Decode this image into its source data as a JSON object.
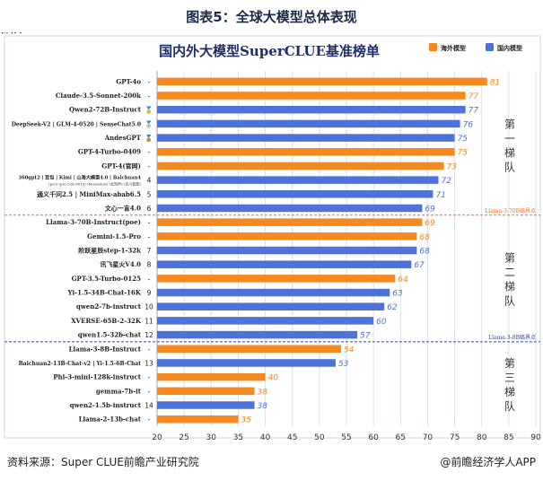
{
  "figure": {
    "title": "图表5：全球大模型总体表现",
    "source": "资料来源：Super CLUE前瞻产业研究院",
    "brand": "@前瞻经济学人APP"
  },
  "colors": {
    "overseas": "#f5891f",
    "domestic": "#4f72d9",
    "tier_line": "#e8712a",
    "tier_line_blue": "#2e4a9e",
    "title": "#1f2f6b"
  },
  "chart_data": {
    "type": "bar",
    "orientation": "horizontal",
    "title": "国内外大模型SuperCLUE基准榜单",
    "legend": [
      {
        "label": "海外模型",
        "group": "overseas"
      },
      {
        "label": "国内模型",
        "group": "domestic"
      }
    ],
    "legend_position": "top-right",
    "xlim": [
      20,
      90
    ],
    "xticks": [
      20,
      25,
      30,
      35,
      40,
      45,
      50,
      55,
      60,
      65,
      70,
      75,
      80,
      85,
      90
    ],
    "grid": true,
    "rows": [
      {
        "name": "GPT-4o",
        "rank": "-",
        "value": 81,
        "group": "overseas"
      },
      {
        "name": "Claude-3.5-Sonnet-200k",
        "rank": "-",
        "value": 77,
        "group": "overseas"
      },
      {
        "name": "Qwen2-72B-Instruct",
        "rank": "🏅",
        "value": 77,
        "group": "domestic"
      },
      {
        "name": "DeepSeek-V2 | GLM-4-0520 | SenseChat5.0",
        "rank": "🥈",
        "value": 76,
        "group": "domestic"
      },
      {
        "name": "AndesGPT",
        "rank": "🥉",
        "value": 75,
        "group": "domestic"
      },
      {
        "name": "GPT-4-Turbo-0409",
        "rank": "-",
        "value": 75,
        "group": "overseas"
      },
      {
        "name": "GPT-4(官网)",
        "rank": "-",
        "value": 73,
        "group": "overseas"
      },
      {
        "name": "360gpt2 | 豆包 | Kimi | 山海大模型4.0 | Baichuan4",
        "sub": "(pro)   (pro-32k-0615)  (Moonshot)  (云知声)  (百川智能)",
        "rank": "4",
        "value": 72,
        "group": "domestic"
      },
      {
        "name": "通义千问2.5 | MiniMax-abab6.5",
        "rank": "5",
        "value": 71,
        "group": "domestic"
      },
      {
        "name": "文心一言4.0",
        "rank": "6",
        "value": 69,
        "group": "domestic"
      },
      {
        "name": "Llama-3-70B-Instruct(poe)",
        "rank": "-",
        "value": 69,
        "group": "overseas"
      },
      {
        "name": "Gemini-1.5-Pro",
        "rank": "-",
        "value": 68,
        "group": "overseas"
      },
      {
        "name": "阶跃星辰step-1-32k",
        "rank": "7",
        "value": 68,
        "group": "domestic"
      },
      {
        "name": "讯飞星火V4.0",
        "rank": "8",
        "value": 67,
        "group": "domestic"
      },
      {
        "name": "GPT-3.5-Turbo-0125",
        "rank": "-",
        "value": 64,
        "group": "overseas"
      },
      {
        "name": "Yi-1.5-34B-Chat-16K",
        "rank": "9",
        "value": 63,
        "group": "domestic"
      },
      {
        "name": "qwen2-7b-instruct",
        "rank": "10",
        "value": 62,
        "group": "domestic"
      },
      {
        "name": "XVERSE-65B-2-32K",
        "rank": "11",
        "value": 60,
        "group": "domestic"
      },
      {
        "name": "qwen1.5-32b-chat",
        "rank": "12",
        "value": 57,
        "group": "domestic"
      },
      {
        "name": "Llama-3-8B-Instruct",
        "rank": "-",
        "value": 54,
        "group": "overseas"
      },
      {
        "name": "Baichuan2-13B-Chat-v2 | Yi-1.5-6B-Chat",
        "rank": "13",
        "value": 53,
        "group": "domestic"
      },
      {
        "name": "Phi-3-mini-128k-instruct",
        "rank": "-",
        "value": 40,
        "group": "overseas"
      },
      {
        "name": "gemma-7b-it",
        "rank": "-",
        "value": 38,
        "group": "overseas"
      },
      {
        "name": "qwen2-1.5b-instruct",
        "rank": "14",
        "value": 38,
        "group": "domestic"
      },
      {
        "name": "Llama-2-13b-chat",
        "rank": "-",
        "value": 35,
        "group": "overseas"
      }
    ],
    "reference_lines": [
      {
        "label": "Llama-3-70B临界点",
        "after_row": 9,
        "color": "tier_line"
      },
      {
        "label": "Llama-3-8B临界点",
        "after_row": 18,
        "color": "tier_line_blue"
      }
    ],
    "tiers": [
      {
        "label": "第一梯队",
        "from_row": 0,
        "to_row": 9
      },
      {
        "label": "第二梯队",
        "from_row": 10,
        "to_row": 18
      },
      {
        "label": "第三梯队",
        "from_row": 19,
        "to_row": 24
      }
    ]
  }
}
